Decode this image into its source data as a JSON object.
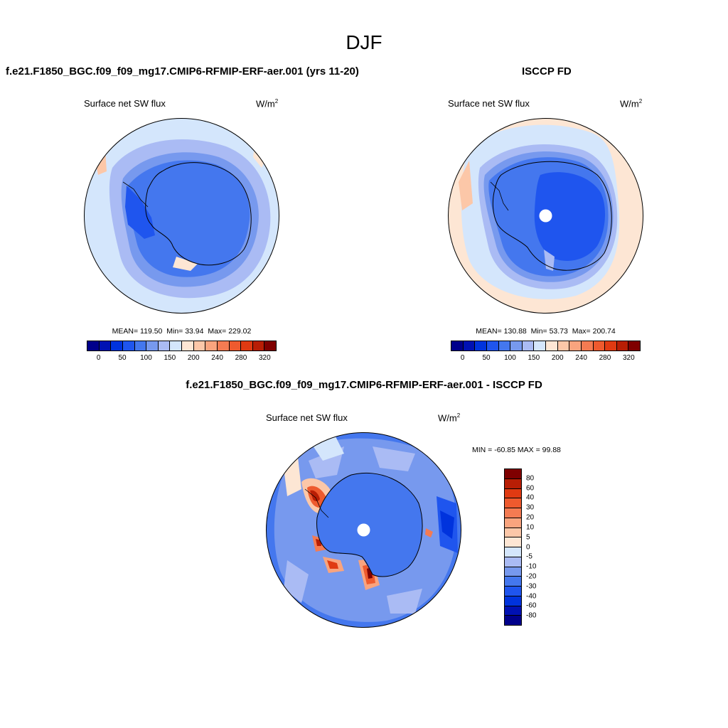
{
  "title": "DJF",
  "panels": [
    {
      "title": "f.e21.F1850_BGC.f09_f09_mg17.CMIP6-RFMIP-ERF-aer.001 (yrs 11-20)",
      "variable": "Surface net SW flux",
      "units": "W/m",
      "units_sup": "2",
      "stats": {
        "mean": "MEAN= 119.50",
        "min": "Min=  33.94",
        "max": "Max= 229.02"
      }
    },
    {
      "title": "ISCCP FD",
      "variable": "Surface net SW flux",
      "units": "W/m",
      "units_sup": "2",
      "stats": {
        "mean": "MEAN= 130.88",
        "min": "Min=  53.73",
        "max": "Max= 200.74"
      }
    },
    {
      "title": "f.e21.F1850_BGC.f09_f09_mg17.CMIP6-RFMIP-ERF-aer.001 - ISCCP FD",
      "variable": "Surface net SW flux",
      "units": "W/m",
      "units_sup": "2",
      "stats": {
        "minmax": "MIN = -60.85 MAX =  99.88"
      }
    }
  ],
  "colorbar_abs": {
    "colors": [
      "#00008b",
      "#0011b3",
      "#0033dd",
      "#1f55ee",
      "#4477ee",
      "#7799ee",
      "#aabbf4",
      "#d4e6fc",
      "#fde6d4",
      "#fcc7a8",
      "#f9a47e",
      "#f47b52",
      "#ee5a2e",
      "#e03a12",
      "#b81e05",
      "#7f0000"
    ],
    "tick_labels": [
      "0",
      "50",
      "100",
      "150",
      "200",
      "240",
      "280",
      "320"
    ]
  },
  "colorbar_diff": {
    "colors": [
      "#7f0000",
      "#b81e05",
      "#e03a12",
      "#ee5a2e",
      "#f47b52",
      "#f9a47e",
      "#fcc7a8",
      "#fde6d4",
      "#d4e6fc",
      "#aabbf4",
      "#7799ee",
      "#4477ee",
      "#1f55ee",
      "#0033dd",
      "#0011b3",
      "#00008b"
    ],
    "tick_labels": [
      "80",
      "60",
      "40",
      "30",
      "20",
      "10",
      "5",
      "0",
      "-5",
      "-10",
      "-20",
      "-30",
      "-40",
      "-60",
      "-80"
    ]
  }
}
